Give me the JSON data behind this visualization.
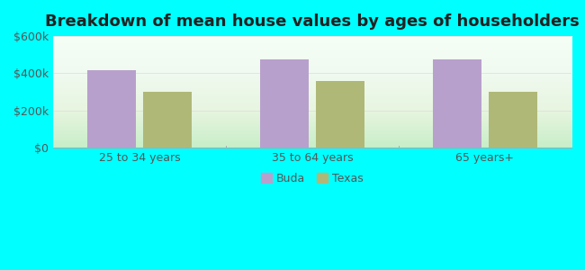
{
  "title": "Breakdown of mean house values by ages of householders",
  "categories": [
    "25 to 34 years",
    "35 to 64 years",
    "65 years+"
  ],
  "buda_values": [
    415000,
    475000,
    475000
  ],
  "texas_values": [
    300000,
    360000,
    300000
  ],
  "buda_color": "#b8a0cc",
  "texas_color": "#b0b878",
  "ylim": [
    0,
    600000
  ],
  "yticks": [
    0,
    200000,
    400000,
    600000
  ],
  "ytick_labels": [
    "$0",
    "$200k",
    "$400k",
    "$600k"
  ],
  "bg_outer": "#00ffff",
  "legend_labels": [
    "Buda",
    "Texas"
  ],
  "bar_width": 0.28,
  "title_fontsize": 13,
  "tick_fontsize": 9,
  "legend_fontsize": 9
}
